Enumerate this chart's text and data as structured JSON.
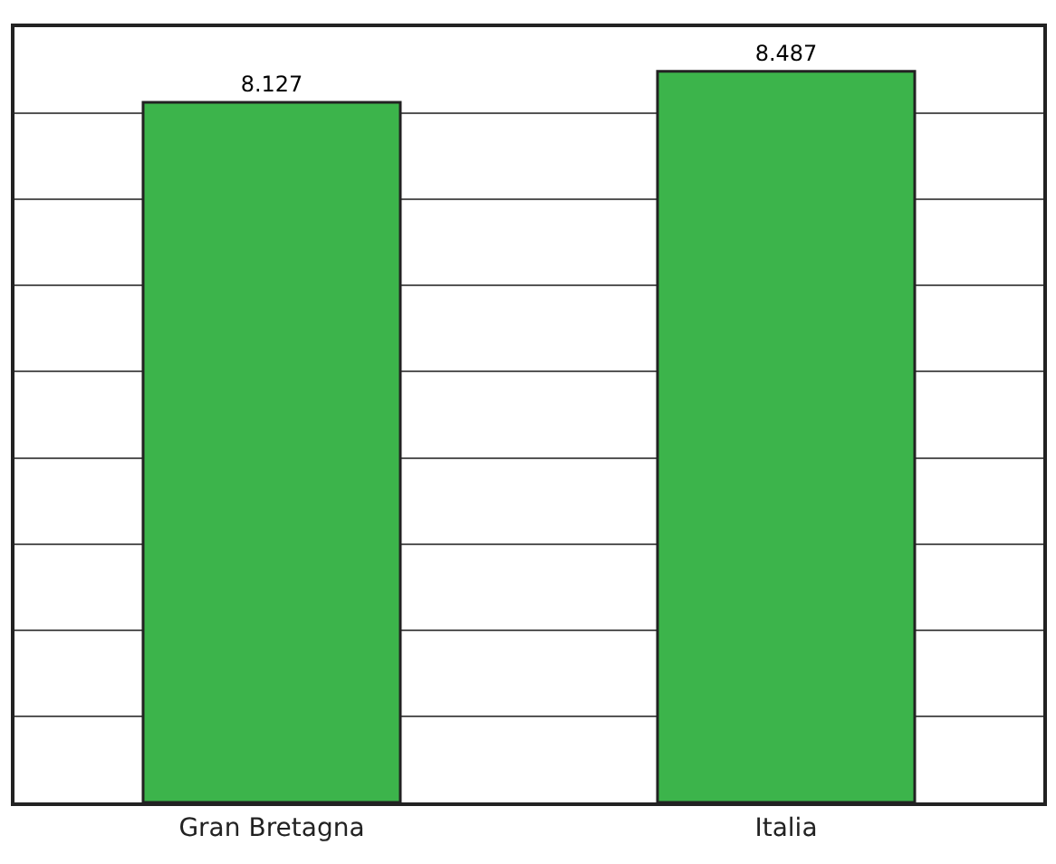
{
  "chart_data": {
    "type": "bar",
    "categories": [
      "Gran Bretagna",
      "Italia"
    ],
    "values": [
      8.127,
      8.487
    ],
    "color": "#3cb44b",
    "data_labels": true,
    "ylim": [
      0,
      9
    ],
    "yticks": [
      {
        "value": 1,
        "label": null
      },
      {
        "value": 2,
        "label": null
      },
      {
        "value": 3,
        "label": null
      },
      {
        "value": 4,
        "label": null
      },
      {
        "value": 5,
        "label": null
      },
      {
        "value": 6,
        "label": null
      },
      {
        "value": 7,
        "label": null
      },
      {
        "value": 8,
        "label": null
      }
    ],
    "grid": "y",
    "tick_labels": "x",
    "legend": false
  }
}
